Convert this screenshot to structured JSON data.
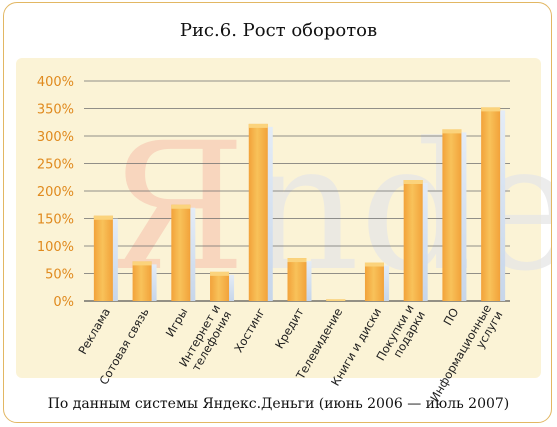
{
  "title": "Рис.6. Рост оборотов",
  "caption": "По данным системы Яндекс.Деньги (июнь 2006 — июль 2007)",
  "watermark": "Яndex",
  "colors": {
    "bar": "#f2a23a",
    "bar_light": "#f8c25a",
    "shadow": "#c7d6ea",
    "frame": "#e2b763",
    "panel": "#fbf3d6",
    "tick_text": "#e08a1e",
    "grid": "#6e6e6e"
  },
  "chart_data": {
    "type": "bar",
    "title": "Рис.6. Рост оборотов",
    "categories": [
      "Реклама",
      "Сотовая связь",
      "Игры",
      "Интернет и телефония",
      "Хостинг",
      "Кредит",
      "Телевидение",
      "Книги и диски",
      "Покупки и подарки",
      "ПО",
      "Информационные услуги"
    ],
    "category_lines": [
      [
        "Реклама"
      ],
      [
        "Сотовая связь"
      ],
      [
        "Игры"
      ],
      [
        "Интернет и",
        "телефония"
      ],
      [
        "Хостинг"
      ],
      [
        "Кредит"
      ],
      [
        "Телевидение"
      ],
      [
        "Книги и диски"
      ],
      [
        "Покупки и",
        "подарки"
      ],
      [
        "ПО"
      ],
      [
        "Информационные",
        "услуги"
      ]
    ],
    "values": [
      155,
      72,
      175,
      53,
      322,
      78,
      3,
      70,
      220,
      312,
      352
    ],
    "ylim": [
      0,
      400
    ],
    "yticks": [
      0,
      50,
      100,
      150,
      200,
      250,
      300,
      350,
      400
    ],
    "ytick_labels": [
      "0%",
      "50%",
      "100%",
      "150%",
      "200%",
      "250%",
      "300%",
      "350%",
      "400%"
    ],
    "unit": "%",
    "grid": true
  }
}
